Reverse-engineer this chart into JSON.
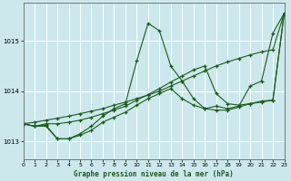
{
  "xlabel": "Graphe pression niveau de la mer (hPa)",
  "xlim": [
    0,
    23
  ],
  "ylim": [
    1012.65,
    1015.75
  ],
  "yticks": [
    1013,
    1014,
    1015
  ],
  "xticks": [
    0,
    1,
    2,
    3,
    4,
    5,
    6,
    7,
    8,
    9,
    10,
    11,
    12,
    13,
    14,
    15,
    16,
    17,
    18,
    19,
    20,
    21,
    22,
    23
  ],
  "bg_color": "#cce8ec",
  "grid_color": "#ffffff",
  "line_color": "#1a5c1a",
  "series": [
    {
      "x": [
        0,
        1,
        2,
        3,
        4,
        5,
        6,
        7,
        8,
        9,
        10,
        11,
        12,
        13,
        14,
        15,
        16,
        17,
        18,
        19,
        20,
        21,
        22,
        23
      ],
      "y": [
        1013.35,
        1013.38,
        1013.42,
        1013.46,
        1013.5,
        1013.55,
        1013.6,
        1013.65,
        1013.72,
        1013.78,
        1013.85,
        1013.92,
        1014.0,
        1014.1,
        1014.2,
        1014.3,
        1014.4,
        1014.5,
        1014.58,
        1014.65,
        1014.72,
        1014.78,
        1014.82,
        1015.55
      ]
    },
    {
      "x": [
        0,
        1,
        2,
        3,
        4,
        5,
        6,
        7,
        8,
        9,
        10,
        11,
        12,
        13,
        14,
        15,
        16,
        17,
        18,
        19,
        20,
        21,
        22,
        23
      ],
      "y": [
        1013.35,
        1013.3,
        1013.3,
        1013.05,
        1013.05,
        1013.15,
        1013.3,
        1013.5,
        1013.65,
        1013.75,
        1014.6,
        1015.35,
        1015.2,
        1014.5,
        1014.2,
        1013.85,
        1013.65,
        1013.7,
        1013.65,
        1013.7,
        1014.1,
        1014.2,
        1015.15,
        1015.55
      ]
    },
    {
      "x": [
        0,
        1,
        2,
        3,
        4,
        5,
        6,
        7,
        8,
        9,
        10,
        11,
        12,
        13,
        14,
        15,
        16,
        17,
        18,
        19,
        20,
        21,
        22,
        23
      ],
      "y": [
        1013.35,
        1013.3,
        1013.35,
        1013.35,
        1013.38,
        1013.42,
        1013.48,
        1013.55,
        1013.62,
        1013.7,
        1013.82,
        1013.93,
        1014.05,
        1014.18,
        1014.3,
        1014.42,
        1014.5,
        1013.95,
        1013.75,
        1013.72,
        1013.75,
        1013.78,
        1013.82,
        1015.55
      ]
    },
    {
      "x": [
        0,
        1,
        2,
        3,
        4,
        5,
        6,
        7,
        8,
        9,
        10,
        11,
        12,
        13,
        14,
        15,
        16,
        17,
        18,
        19,
        20,
        21,
        22,
        23
      ],
      "y": [
        1013.35,
        1013.3,
        1013.32,
        1013.05,
        1013.05,
        1013.12,
        1013.22,
        1013.38,
        1013.48,
        1013.58,
        1013.72,
        1013.85,
        1013.95,
        1014.05,
        1013.85,
        1013.72,
        1013.65,
        1013.62,
        1013.62,
        1013.68,
        1013.75,
        1013.8,
        1013.82,
        1015.55
      ]
    }
  ]
}
